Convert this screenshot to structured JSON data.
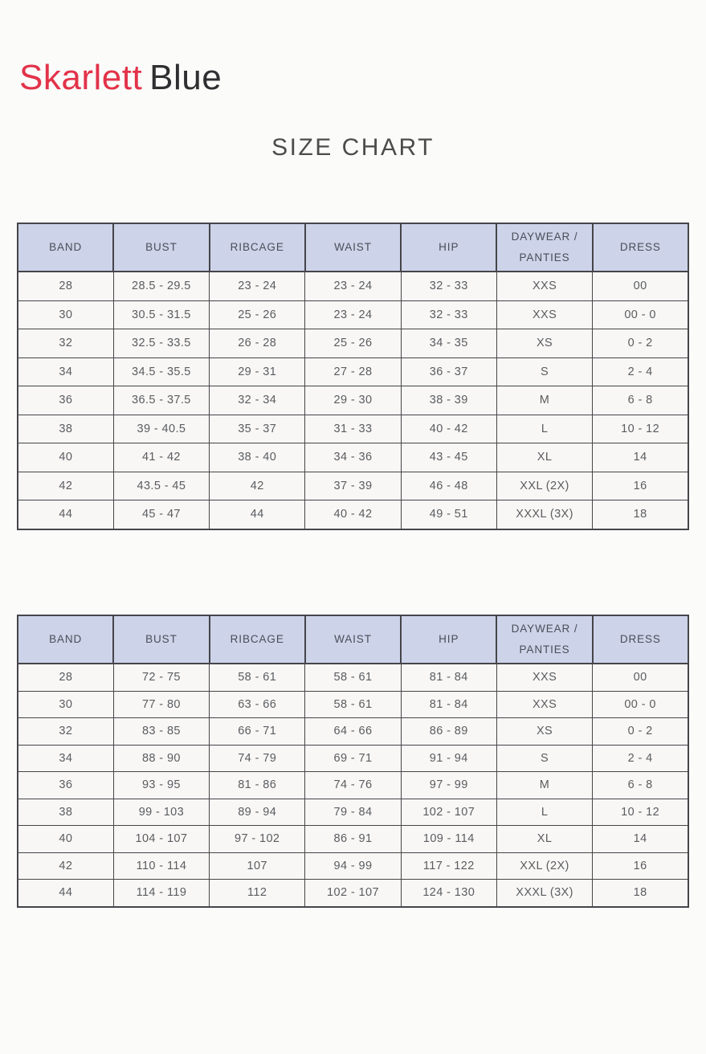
{
  "brand": {
    "primary": "Skarlett",
    "secondary": "Blue",
    "primary_color": "#e23349",
    "secondary_color": "#2f2f31"
  },
  "title": "SIZE CHART",
  "columns": [
    "BAND",
    "BUST",
    "RIBCAGE",
    "WAIST",
    "HIP",
    "DAYWEAR /\nPANTIES",
    "DRESS"
  ],
  "tables": [
    {
      "rows": [
        [
          "28",
          "28.5 - 29.5",
          "23 - 24",
          "23 - 24",
          "32 - 33",
          "XXS",
          "00"
        ],
        [
          "30",
          "30.5 - 31.5",
          "25 - 26",
          "23 - 24",
          "32 - 33",
          "XXS",
          "00 - 0"
        ],
        [
          "32",
          "32.5 - 33.5",
          "26 - 28",
          "25 - 26",
          "34 - 35",
          "XS",
          "0 - 2"
        ],
        [
          "34",
          "34.5 - 35.5",
          "29 - 31",
          "27 - 28",
          "36 - 37",
          "S",
          "2 - 4"
        ],
        [
          "36",
          "36.5 - 37.5",
          "32 - 34",
          "29 - 30",
          "38 - 39",
          "M",
          "6 - 8"
        ],
        [
          "38",
          "39 - 40.5",
          "35 - 37",
          "31 - 33",
          "40 - 42",
          "L",
          "10 - 12"
        ],
        [
          "40",
          "41 - 42",
          "38 - 40",
          "34 - 36",
          "43 - 45",
          "XL",
          "14"
        ],
        [
          "42",
          "43.5 - 45",
          "42",
          "37 - 39",
          "46 - 48",
          "XXL (2X)",
          "16"
        ],
        [
          "44",
          "45 - 47",
          "44",
          "40 - 42",
          "49 - 51",
          "XXXL (3X)",
          "18"
        ]
      ]
    },
    {
      "rows": [
        [
          "28",
          "72 - 75",
          "58 - 61",
          "58 - 61",
          "81 - 84",
          "XXS",
          "00"
        ],
        [
          "30",
          "77 - 80",
          "63 - 66",
          "58 - 61",
          "81 - 84",
          "XXS",
          "00 - 0"
        ],
        [
          "32",
          "83 - 85",
          "66 - 71",
          "64 - 66",
          "86 - 89",
          "XS",
          "0 - 2"
        ],
        [
          "34",
          "88 - 90",
          "74 - 79",
          "69 - 71",
          "91 - 94",
          "S",
          "2 - 4"
        ],
        [
          "36",
          "93 - 95",
          "81 - 86",
          "74 - 76",
          "97 - 99",
          "M",
          "6 - 8"
        ],
        [
          "38",
          "99 - 103",
          "89 - 94",
          "79 - 84",
          "102 - 107",
          "L",
          "10 - 12"
        ],
        [
          "40",
          "104 - 107",
          "97 - 102",
          "86 - 91",
          "109 - 114",
          "XL",
          "14"
        ],
        [
          "42",
          "110 - 114",
          "107",
          "94 - 99",
          "117 - 122",
          "XXL (2X)",
          "16"
        ],
        [
          "44",
          "114 - 119",
          "112",
          "102 - 107",
          "124 - 130",
          "XXXL (3X)",
          "18"
        ]
      ]
    }
  ],
  "colors": {
    "page_background": "#fbfbfa",
    "header_fill": "#cdd3e8",
    "header_text": "#4a4e59",
    "cell_fill": "#f8f7f5",
    "cell_text": "#5a5c61",
    "border": "#45454a",
    "title_text": "#4c4c4c"
  }
}
